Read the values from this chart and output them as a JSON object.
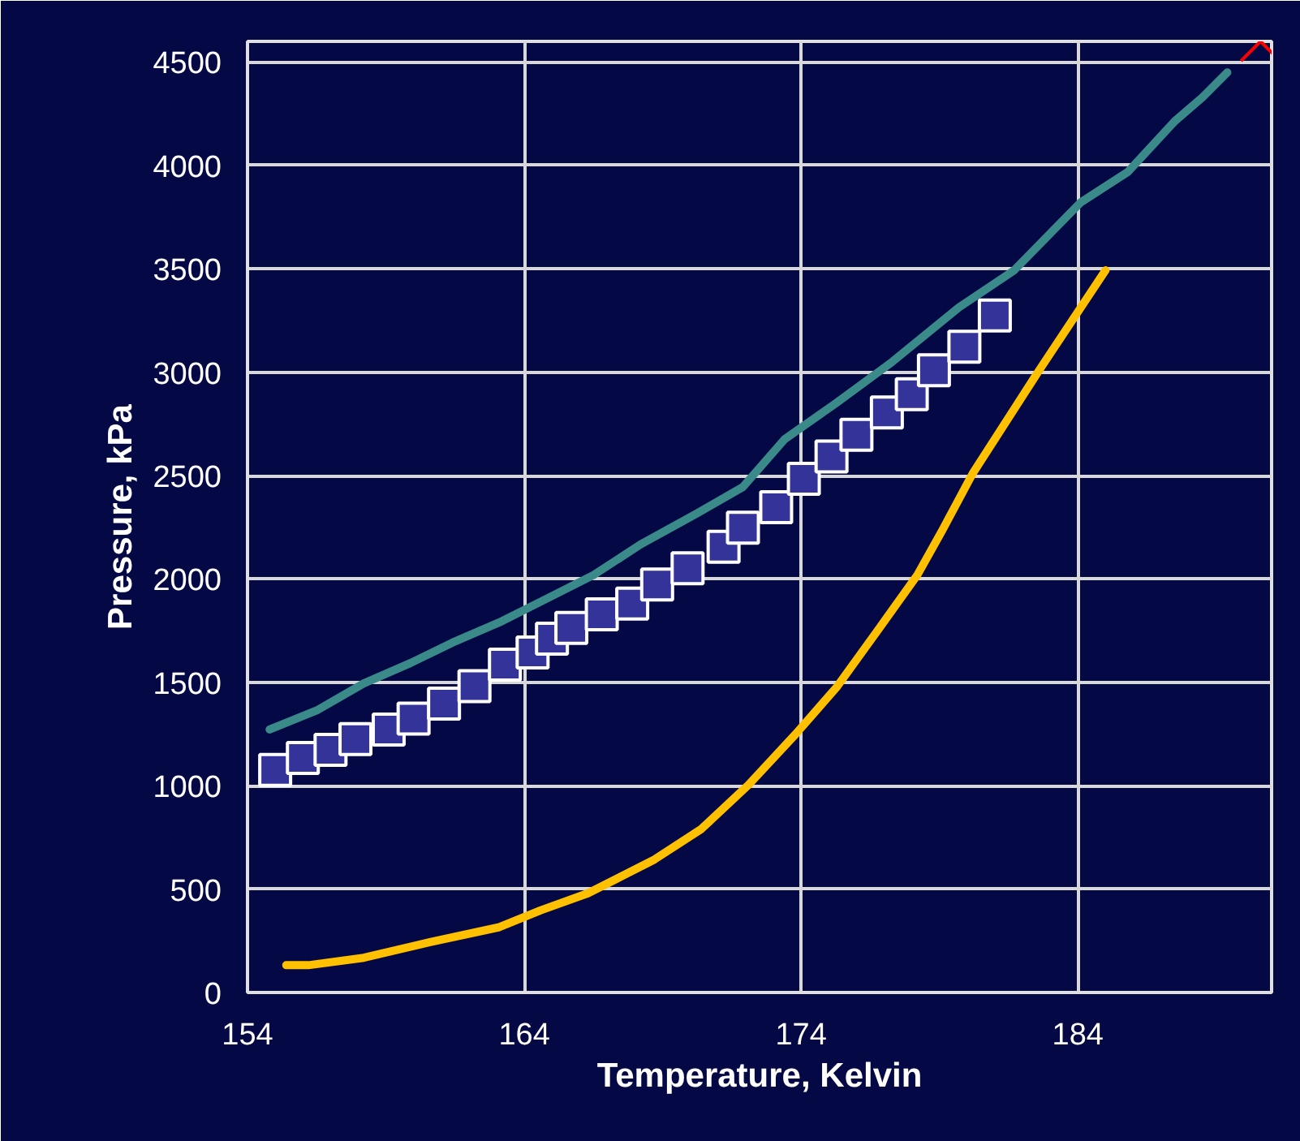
{
  "chart_data": {
    "type": "line",
    "xlabel": "Temperature, Kelvin",
    "ylabel": "Pressure, kPa",
    "xlim": [
      154,
      191
    ],
    "xticks": [
      154,
      164,
      174,
      184
    ],
    "ylim": [
      0,
      4600
    ],
    "yticks": [
      0,
      500,
      1000,
      1500,
      2000,
      2500,
      3000,
      3500,
      4000,
      4500
    ],
    "grid": true,
    "line_style": "solid",
    "series": [
      {
        "color": "#3a8a8a",
        "marker": "none",
        "x": [
          154.8,
          156.5,
          158.2,
          159.9,
          161.4,
          163.1,
          164.8,
          166.5,
          168.2,
          170.2,
          171.9,
          173.4,
          175.3,
          177.3,
          179.7,
          181.7,
          184.1,
          185.8,
          187.5,
          188.5,
          189.4
        ],
        "values": [
          1272,
          1364,
          1495,
          1594,
          1692,
          1790,
          1904,
          2019,
          2167,
          2314,
          2445,
          2675,
          2854,
          3051,
          3313,
          3493,
          3821,
          3968,
          4214,
          4329,
          4450
        ]
      },
      {
        "type": "scatter",
        "color": "#333399",
        "marker": "square",
        "x": [
          155.0,
          156.0,
          157.0,
          157.9,
          159.1,
          160.0,
          161.1,
          162.2,
          163.3,
          164.3,
          165.0,
          165.7,
          166.8,
          167.9,
          168.8,
          169.9,
          171.2,
          171.9,
          173.1,
          174.1,
          175.1,
          176.0,
          177.1,
          178.0,
          178.8,
          179.9,
          181.0
        ],
        "values": [
          1076,
          1134,
          1174,
          1226,
          1272,
          1325,
          1397,
          1482,
          1586,
          1645,
          1711,
          1763,
          1829,
          1881,
          1973,
          2052,
          2156,
          2248,
          2347,
          2484,
          2592,
          2697,
          2805,
          2894,
          3009,
          3123,
          3274
        ]
      },
      {
        "color": "#ffc000",
        "marker": "none",
        "x": [
          155.4,
          156.2,
          158.2,
          160.6,
          163.1,
          164.6,
          166.3,
          167.5,
          168.7,
          170.4,
          172.1,
          173.8,
          175.3,
          176.8,
          178.2,
          179.1,
          180.2,
          182.6,
          185.0
        ],
        "values": [
          132,
          132,
          168,
          244,
          316,
          398,
          480,
          561,
          643,
          791,
          1004,
          1249,
          1479,
          1757,
          2019,
          2235,
          2510,
          3009,
          3493
        ]
      },
      {
        "type": "scatter",
        "color": "#ff0000",
        "marker": "cross",
        "x": [
          190.6
        ],
        "values": [
          4600
        ]
      }
    ]
  }
}
